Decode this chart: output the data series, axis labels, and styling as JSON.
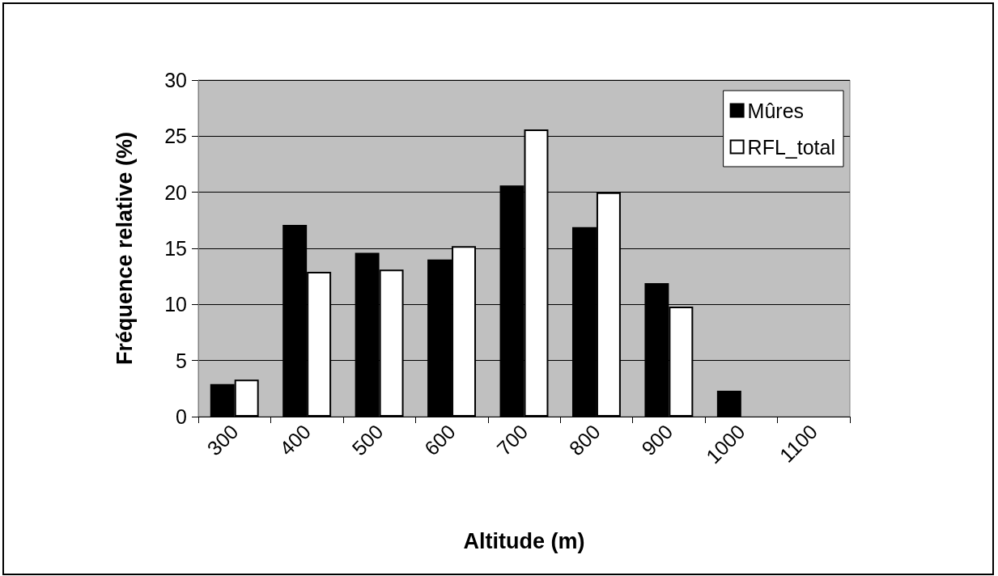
{
  "chart_data": {
    "type": "bar",
    "xlabel": "Altitude (m)",
    "ylabel": "Fréquence relative (%)",
    "categories": [
      "300",
      "400",
      "500",
      "600",
      "700",
      "800",
      "900",
      "1000",
      "1100"
    ],
    "series": [
      {
        "name": "Mûres",
        "color": "#000000",
        "values": [
          2.9,
          17.1,
          14.6,
          14.0,
          20.6,
          16.9,
          11.9,
          2.3,
          null
        ]
      },
      {
        "name": "RFL_total",
        "color": "#ffffff",
        "values": [
          3.3,
          12.9,
          13.1,
          15.2,
          25.6,
          20.0,
          9.8,
          null,
          null
        ]
      }
    ],
    "ylim": [
      0,
      30
    ],
    "yticks": [
      0,
      5,
      10,
      15,
      20,
      25,
      30
    ],
    "grid": "y",
    "legend": "top right"
  }
}
